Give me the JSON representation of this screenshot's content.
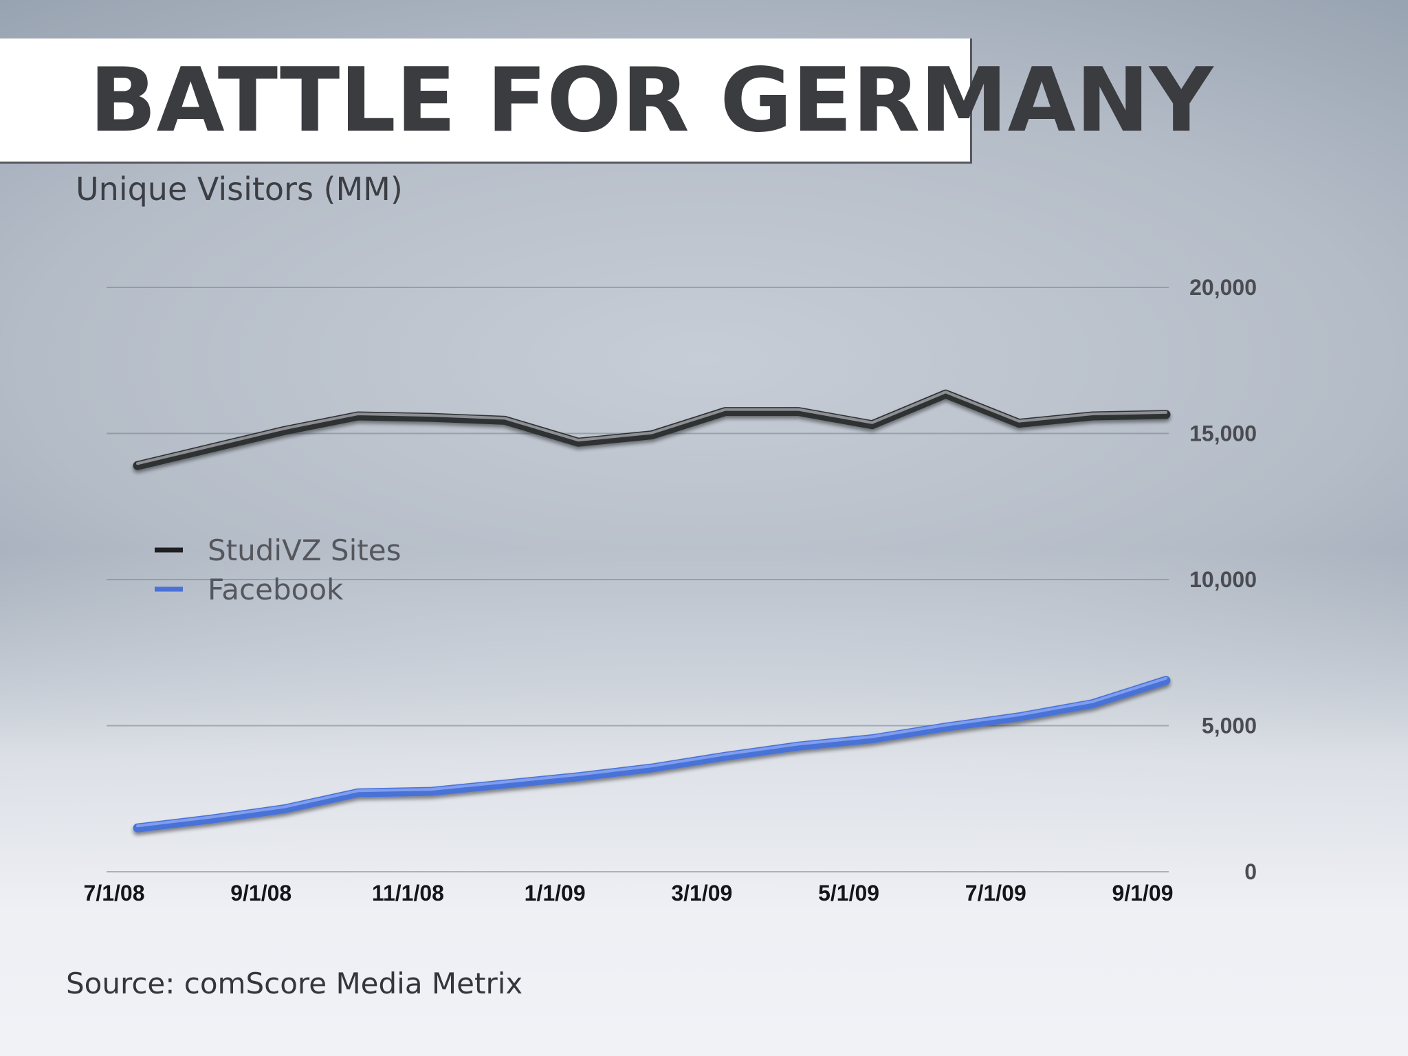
{
  "slide": {
    "title": "BATTLE FOR GERMANY",
    "subtitle": "Unique Visitors (MM)",
    "source": "Source:  comScore Media Metrix"
  },
  "chart_data": {
    "type": "line",
    "title": "",
    "xlabel": "",
    "ylabel": "Unique Visitors (MM)",
    "x": [
      "7/1/08",
      "8/1/08",
      "9/1/08",
      "10/1/08",
      "11/1/08",
      "12/1/08",
      "1/1/09",
      "2/1/09",
      "3/1/09",
      "4/1/09",
      "5/1/09",
      "6/1/09",
      "7/1/09",
      "8/1/09",
      "9/1/09"
    ],
    "x_tick_labels": [
      "7/1/08",
      "9/1/08",
      "11/1/08",
      "1/1/09",
      "3/1/09",
      "5/1/09",
      "7/1/09",
      "9/1/09"
    ],
    "y_ticks": [
      0,
      5000,
      10000,
      15000,
      20000
    ],
    "y_tick_labels": [
      "0",
      "5,000",
      "10,000",
      "15,000",
      "20,000"
    ],
    "ylim": [
      0,
      20000
    ],
    "grid": true,
    "y_axis_side": "right",
    "legend_placement": "center-left",
    "series": [
      {
        "name": "StudiVZ Sites",
        "color": "#2a2b2e",
        "values": [
          13900,
          14500,
          15100,
          15600,
          15550,
          15450,
          14700,
          14950,
          15750,
          15750,
          15300,
          16350,
          15350,
          15600,
          15650
        ]
      },
      {
        "name": "Facebook",
        "color": "#4a72d6",
        "values": [
          1500,
          1800,
          2150,
          2700,
          2750,
          3000,
          3250,
          3550,
          3950,
          4300,
          4550,
          4950,
          5300,
          5750,
          6550
        ]
      }
    ]
  }
}
